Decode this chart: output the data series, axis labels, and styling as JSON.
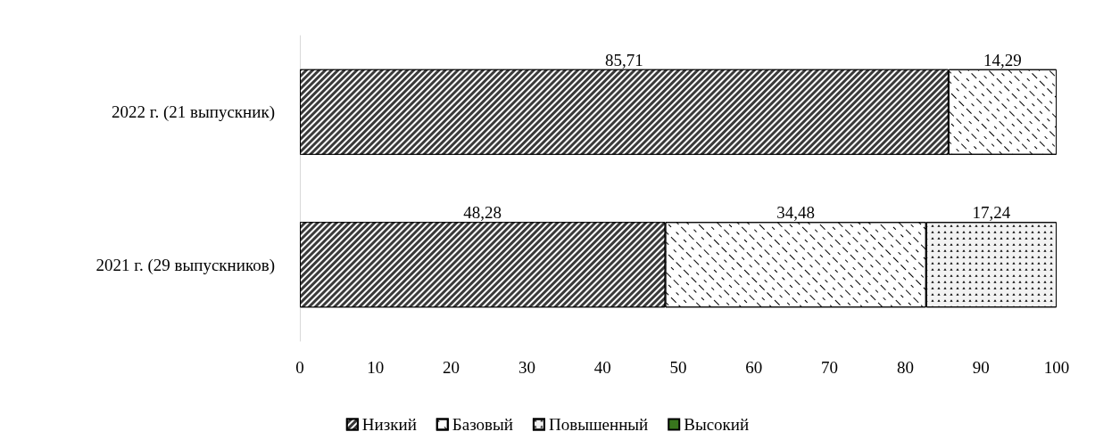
{
  "chart_data": {
    "type": "bar",
    "orientation": "horizontal",
    "stacked": true,
    "categories": [
      "2022 г. (21 выпускник)",
      "2021 г. (29 выпускников)"
    ],
    "series": [
      {
        "name": "Низкий",
        "color": "#3a3a3a",
        "values": [
          85.71,
          48.28
        ],
        "value_labels": [
          "85,71",
          "48,28"
        ]
      },
      {
        "name": "Базовый",
        "color": "#ffffff",
        "values": [
          14.29,
          34.48
        ],
        "value_labels": [
          "14,29",
          "34,48"
        ]
      },
      {
        "name": "Повышенный",
        "color": "#f2f2f2",
        "values": [
          null,
          17.24
        ],
        "value_labels": [
          null,
          "17,24"
        ]
      },
      {
        "name": "Высокий",
        "color": "#38761d",
        "values": [
          null,
          null
        ],
        "value_labels": [
          null,
          null
        ]
      }
    ],
    "xlim": [
      0,
      100
    ],
    "xticks": [
      0,
      10,
      20,
      30,
      40,
      50,
      60,
      70,
      80,
      90,
      100
    ],
    "grid": false,
    "legend": "bottom"
  }
}
